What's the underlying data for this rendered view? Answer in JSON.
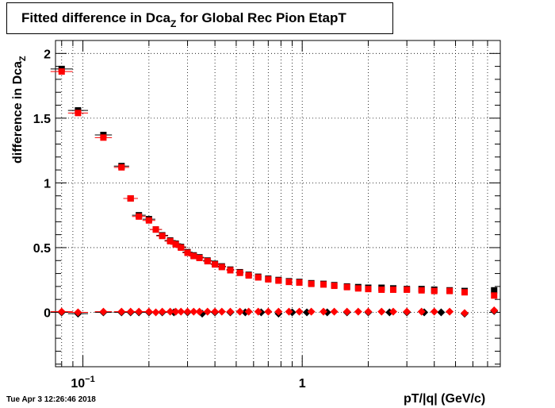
{
  "timestamp": "Tue Apr  3 12:26:46 2018",
  "chart_data": {
    "type": "scatter",
    "title_main": "Fitted difference in Dca",
    "title_sub": "Z",
    "title_tail": " for Global Rec Pion EtapT",
    "ylabel_main": "difference in Dca",
    "ylabel_sub": "Z",
    "xlabel": "pT/|q| (GeV/c)",
    "x_scale": "log",
    "xlim": [
      0.075,
      8.0
    ],
    "ylim": [
      -0.42,
      2.1
    ],
    "grid": true,
    "x_tick_labels": [
      {
        "value": 0.1,
        "label": "10",
        "sup": "−1"
      },
      {
        "value": 1,
        "label": "1",
        "sup": ""
      }
    ],
    "y_tick_labels": [
      {
        "value": 0,
        "label": "0"
      },
      {
        "value": 0.5,
        "label": "0.5"
      },
      {
        "value": 1,
        "label": "1"
      },
      {
        "value": 1.5,
        "label": "1.5"
      },
      {
        "value": 2,
        "label": "2"
      }
    ],
    "colors": {
      "black_series": "#000000",
      "red_series": "#ff0000"
    },
    "series": [
      {
        "marker": "square",
        "color": "#000000",
        "points": [
          [
            0.08,
            1.88
          ],
          [
            0.095,
            1.56
          ],
          [
            0.124,
            1.37
          ],
          [
            0.15,
            1.13
          ],
          [
            0.165,
            0.88
          ],
          [
            0.18,
            0.75
          ],
          [
            0.2,
            0.72
          ],
          [
            0.215,
            0.64
          ],
          [
            0.23,
            0.595
          ],
          [
            0.25,
            0.555
          ],
          [
            0.265,
            0.53
          ],
          [
            0.28,
            0.505
          ],
          [
            0.3,
            0.465
          ],
          [
            0.32,
            0.44
          ],
          [
            0.34,
            0.425
          ],
          [
            0.37,
            0.4
          ],
          [
            0.4,
            0.375
          ],
          [
            0.43,
            0.355
          ],
          [
            0.47,
            0.33
          ],
          [
            0.52,
            0.31
          ],
          [
            0.57,
            0.29
          ],
          [
            0.63,
            0.275
          ],
          [
            0.7,
            0.26
          ],
          [
            0.78,
            0.25
          ],
          [
            0.87,
            0.24
          ],
          [
            0.97,
            0.235
          ],
          [
            1.1,
            0.225
          ],
          [
            1.25,
            0.22
          ],
          [
            1.4,
            0.21
          ],
          [
            1.6,
            0.2
          ],
          [
            1.8,
            0.195
          ],
          [
            2.0,
            0.19
          ],
          [
            2.3,
            0.19
          ],
          [
            2.6,
            0.185
          ],
          [
            3.0,
            0.18
          ],
          [
            3.5,
            0.18
          ],
          [
            4.0,
            0.175
          ],
          [
            4.7,
            0.17
          ],
          [
            5.5,
            0.165
          ],
          [
            7.5,
            0.17
          ]
        ]
      },
      {
        "marker": "square",
        "color": "#ff0000",
        "points": [
          [
            0.08,
            1.86
          ],
          [
            0.095,
            1.54
          ],
          [
            0.124,
            1.35
          ],
          [
            0.15,
            1.12
          ],
          [
            0.165,
            0.88
          ],
          [
            0.18,
            0.74
          ],
          [
            0.2,
            0.71
          ],
          [
            0.215,
            0.64
          ],
          [
            0.23,
            0.59
          ],
          [
            0.25,
            0.55
          ],
          [
            0.265,
            0.525
          ],
          [
            0.28,
            0.5
          ],
          [
            0.3,
            0.46
          ],
          [
            0.32,
            0.435
          ],
          [
            0.34,
            0.42
          ],
          [
            0.37,
            0.395
          ],
          [
            0.4,
            0.37
          ],
          [
            0.43,
            0.35
          ],
          [
            0.47,
            0.325
          ],
          [
            0.52,
            0.305
          ],
          [
            0.57,
            0.285
          ],
          [
            0.63,
            0.27
          ],
          [
            0.7,
            0.255
          ],
          [
            0.78,
            0.245
          ],
          [
            0.87,
            0.235
          ],
          [
            0.97,
            0.23
          ],
          [
            1.1,
            0.22
          ],
          [
            1.25,
            0.215
          ],
          [
            1.4,
            0.205
          ],
          [
            1.6,
            0.195
          ],
          [
            1.8,
            0.185
          ],
          [
            2.0,
            0.18
          ],
          [
            2.3,
            0.175
          ],
          [
            2.6,
            0.175
          ],
          [
            3.0,
            0.175
          ],
          [
            3.5,
            0.17
          ],
          [
            4.0,
            0.165
          ],
          [
            4.7,
            0.165
          ],
          [
            5.5,
            0.155
          ],
          [
            7.5,
            0.13
          ]
        ]
      },
      {
        "marker": "diamond",
        "color": "#000000",
        "points": [
          [
            0.08,
            0.0
          ],
          [
            0.095,
            -0.01
          ],
          [
            0.124,
            0.0
          ],
          [
            0.15,
            0.0
          ],
          [
            0.165,
            0.0
          ],
          [
            0.18,
            0.0
          ],
          [
            0.2,
            0.0
          ],
          [
            0.23,
            0.0
          ],
          [
            0.26,
            0.0
          ],
          [
            0.3,
            0.0
          ],
          [
            0.35,
            -0.01
          ],
          [
            0.4,
            0.0
          ],
          [
            0.47,
            0.0
          ],
          [
            0.55,
            0.0
          ],
          [
            0.65,
            0.0
          ],
          [
            0.78,
            -0.01
          ],
          [
            0.9,
            0.0
          ],
          [
            1.05,
            0.0
          ],
          [
            1.3,
            0.0
          ],
          [
            1.6,
            0.0
          ],
          [
            2.0,
            0.0
          ],
          [
            2.5,
            0.0
          ],
          [
            3.0,
            0.0
          ],
          [
            3.6,
            0.0
          ],
          [
            4.3,
            0.0
          ],
          [
            5.5,
            -0.01
          ],
          [
            7.5,
            0.01
          ]
        ]
      },
      {
        "marker": "diamond",
        "color": "#ff0000",
        "points": [
          [
            0.08,
            0.005
          ],
          [
            0.095,
            0.0
          ],
          [
            0.124,
            0.005
          ],
          [
            0.15,
            0.005
          ],
          [
            0.165,
            0.005
          ],
          [
            0.18,
            0.005
          ],
          [
            0.2,
            0.005
          ],
          [
            0.215,
            0.0
          ],
          [
            0.23,
            0.005
          ],
          [
            0.25,
            0.005
          ],
          [
            0.265,
            0.005
          ],
          [
            0.28,
            0.005
          ],
          [
            0.3,
            0.005
          ],
          [
            0.32,
            0.005
          ],
          [
            0.34,
            0.005
          ],
          [
            0.37,
            0.005
          ],
          [
            0.4,
            0.005
          ],
          [
            0.43,
            0.005
          ],
          [
            0.47,
            0.005
          ],
          [
            0.52,
            0.005
          ],
          [
            0.57,
            0.005
          ],
          [
            0.63,
            0.005
          ],
          [
            0.7,
            0.005
          ],
          [
            0.78,
            0.005
          ],
          [
            0.87,
            0.005
          ],
          [
            0.97,
            0.005
          ],
          [
            1.1,
            0.005
          ],
          [
            1.25,
            0.005
          ],
          [
            1.4,
            0.005
          ],
          [
            1.6,
            0.005
          ],
          [
            1.8,
            0.005
          ],
          [
            2.0,
            0.005
          ],
          [
            2.3,
            0.005
          ],
          [
            2.6,
            0.005
          ],
          [
            3.0,
            0.005
          ],
          [
            3.5,
            0.005
          ],
          [
            4.0,
            0.005
          ],
          [
            4.7,
            0.005
          ],
          [
            5.5,
            -0.005
          ],
          [
            7.5,
            0.015
          ]
        ]
      }
    ]
  }
}
